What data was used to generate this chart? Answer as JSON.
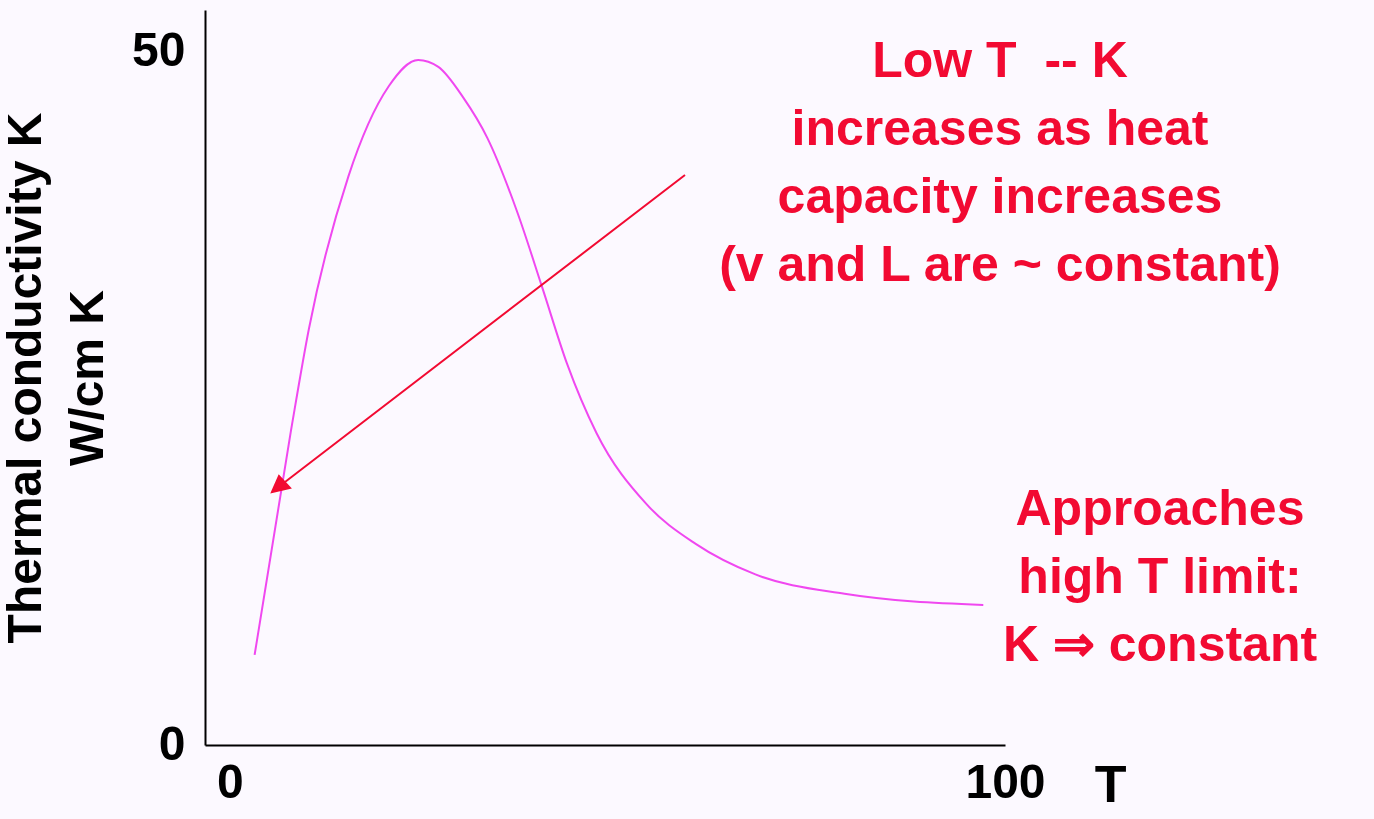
{
  "chart_data": {
    "type": "line",
    "xlabel": "T",
    "ylabel": "Thermal conductivity K\nW/cm K",
    "xlim": [
      -3.2,
      100
    ],
    "ylim": [
      0,
      53
    ],
    "xticks": [
      0,
      100
    ],
    "yticks": [
      0,
      50
    ],
    "grid": false,
    "marker": "none",
    "line_style": "solid",
    "series": [
      {
        "color": "#f048f0",
        "x": [
          3.2,
          7.9,
          10.2,
          15.3,
          20.5,
          24.3,
          26.9,
          30.1,
          33.2,
          37.1,
          40.3,
          43.5,
          47.3,
          53.7,
          60.1,
          67.8,
          79.3,
          97.2
        ],
        "values": [
          6.5,
          22.7,
          30,
          41,
          47.5,
          49.4,
          48.9,
          46.7,
          43.8,
          38.4,
          33,
          27.5,
          22.5,
          17.4,
          14.5,
          12.3,
          10.9,
          10.1
        ]
      }
    ],
    "annotations": [
      "Low T  -- K\nincreases as heat\ncapacity increases\n(v and L are ~ constant)",
      "Approaches\nhigh T limit:\nK ⇒ constant"
    ]
  }
}
